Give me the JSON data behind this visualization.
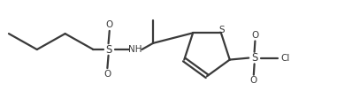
{
  "bg_color": "#ffffff",
  "line_color": "#3a3a3a",
  "text_color": "#3a3a3a",
  "line_width": 1.6,
  "font_size": 7.5,
  "figsize": [
    3.98,
    1.2
  ],
  "dpi": 100,
  "xlim": [
    0,
    10
  ],
  "ylim": [
    0,
    3.0
  ]
}
